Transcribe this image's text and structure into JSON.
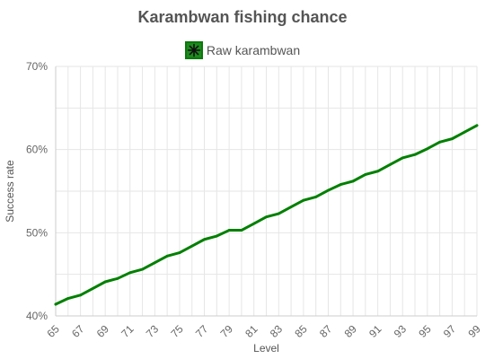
{
  "chart_data": {
    "type": "line",
    "title": "Karambwan fishing chance",
    "xlabel": "Level",
    "ylabel": "Success rate",
    "xlim": [
      65,
      99
    ],
    "ylim": [
      40,
      70
    ],
    "y_ticks": [
      "40%",
      "50%",
      "60%",
      "70%"
    ],
    "grid": true,
    "legend_position": "top-center",
    "series": [
      {
        "name": "Raw karambwan",
        "color": "#008000",
        "x": [
          65,
          66,
          67,
          68,
          69,
          70,
          71,
          72,
          73,
          74,
          75,
          76,
          77,
          78,
          79,
          80,
          81,
          82,
          83,
          84,
          85,
          86,
          87,
          88,
          89,
          90,
          91,
          92,
          93,
          94,
          95,
          96,
          97,
          98,
          99
        ],
        "values": [
          41.4,
          42.1,
          42.5,
          43.3,
          44.1,
          44.5,
          45.2,
          45.6,
          46.4,
          47.2,
          47.6,
          48.4,
          49.2,
          49.6,
          50.3,
          50.3,
          51.1,
          51.9,
          52.3,
          53.1,
          53.9,
          54.3,
          55.1,
          55.8,
          56.2,
          57.0,
          57.4,
          58.2,
          59.0,
          59.4,
          60.1,
          60.9,
          61.3,
          62.1,
          62.9
        ]
      }
    ]
  }
}
